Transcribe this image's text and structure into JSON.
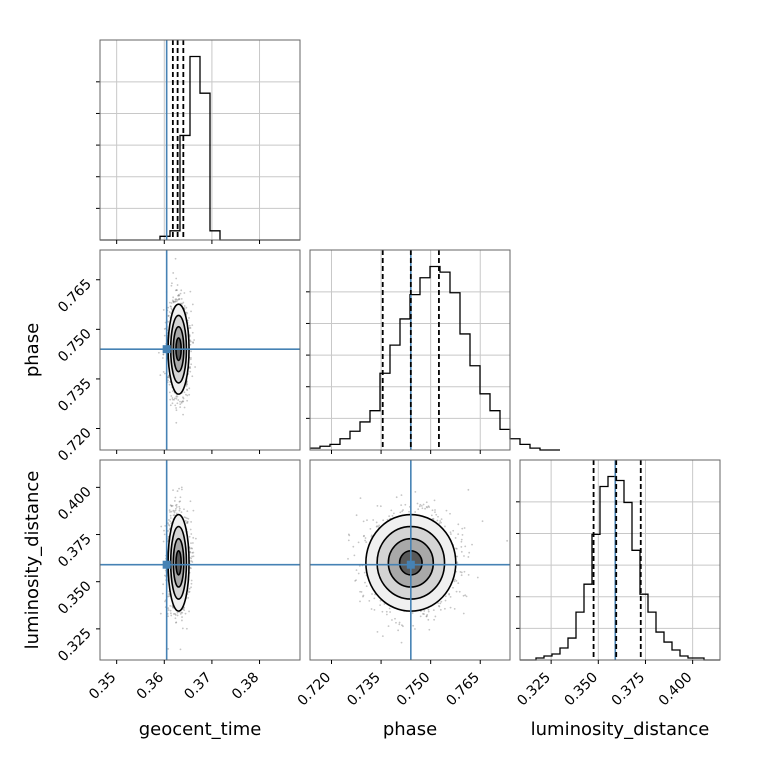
{
  "chart_data": {
    "type": "corner",
    "params": [
      "geocent_time",
      "phase",
      "luminosity_distance"
    ],
    "labels": [
      "geocent_time",
      "phase",
      "luminosity_distance"
    ],
    "truths": [
      0.3605,
      0.744,
      0.359
    ],
    "ranges": [
      [
        0.3465,
        0.3885
      ],
      [
        0.7135,
        0.774
      ],
      [
        0.3085,
        0.4145
      ]
    ],
    "ticks": [
      [
        0.35,
        0.36,
        0.37,
        0.38
      ],
      [
        0.72,
        0.735,
        0.75,
        0.765
      ],
      [
        0.325,
        0.35,
        0.375,
        0.4
      ]
    ],
    "tick_labels": [
      [
        "0.35",
        "0.36",
        "0.37",
        "0.38"
      ],
      [
        "0.720",
        "0.735",
        "0.750",
        "0.765"
      ],
      [
        "0.325",
        "0.350",
        "0.375",
        "0.400"
      ]
    ],
    "quantiles": [
      [
        0.3618,
        0.3628,
        0.364
      ],
      [
        0.7355,
        0.744,
        0.7525
      ],
      [
        0.3475,
        0.3595,
        0.3725
      ]
    ],
    "histograms": [
      {
        "edges_start": 0.3465,
        "bin_width": 0.0021,
        "counts": [
          0,
          0,
          0,
          0,
          0,
          0,
          2,
          5,
          57,
          100,
          80,
          5,
          0,
          0,
          0,
          0,
          0,
          0,
          0,
          0
        ]
      },
      {
        "edges_start": 0.7135,
        "bin_width": 0.003025,
        "counts": [
          1,
          2,
          3,
          6,
          10,
          15,
          21,
          41,
          56,
          70,
          83,
          92,
          98,
          95,
          84,
          62,
          45,
          30,
          21,
          11,
          6,
          3,
          1,
          0,
          0
        ]
      },
      {
        "edges_start": 0.3085,
        "bin_width": 0.00424,
        "counts": [
          0,
          0,
          1,
          2,
          3,
          6,
          11,
          24,
          38,
          63,
          87,
          92,
          90,
          79,
          55,
          33,
          24,
          14,
          9,
          5,
          2,
          1,
          1,
          0,
          0
        ]
      }
    ],
    "posterior_2d": [
      {
        "x": "geocent_time",
        "y": "phase",
        "mean": [
          0.363,
          0.744
        ],
        "sd": [
          0.0011,
          0.0068
        ],
        "contours_sigma": [
          0.5,
          1.0,
          1.5,
          2.0
        ]
      },
      {
        "x": "geocent_time",
        "y": "luminosity_distance",
        "mean": [
          0.363,
          0.36
        ],
        "sd": [
          0.0011,
          0.0128
        ],
        "contours_sigma": [
          0.5,
          1.0,
          1.5,
          2.0
        ]
      },
      {
        "x": "phase",
        "y": "luminosity_distance",
        "mean": [
          0.744,
          0.36
        ],
        "sd": [
          0.0068,
          0.0128
        ],
        "contours_sigma": [
          0.5,
          1.0,
          1.5,
          2.0
        ]
      }
    ],
    "colors": {
      "truth": "#4682b4",
      "hist": "#000000",
      "grid": "#c8c8c8",
      "frame": "#666666",
      "scatter": "#7f7f7f"
    },
    "grid": true
  }
}
